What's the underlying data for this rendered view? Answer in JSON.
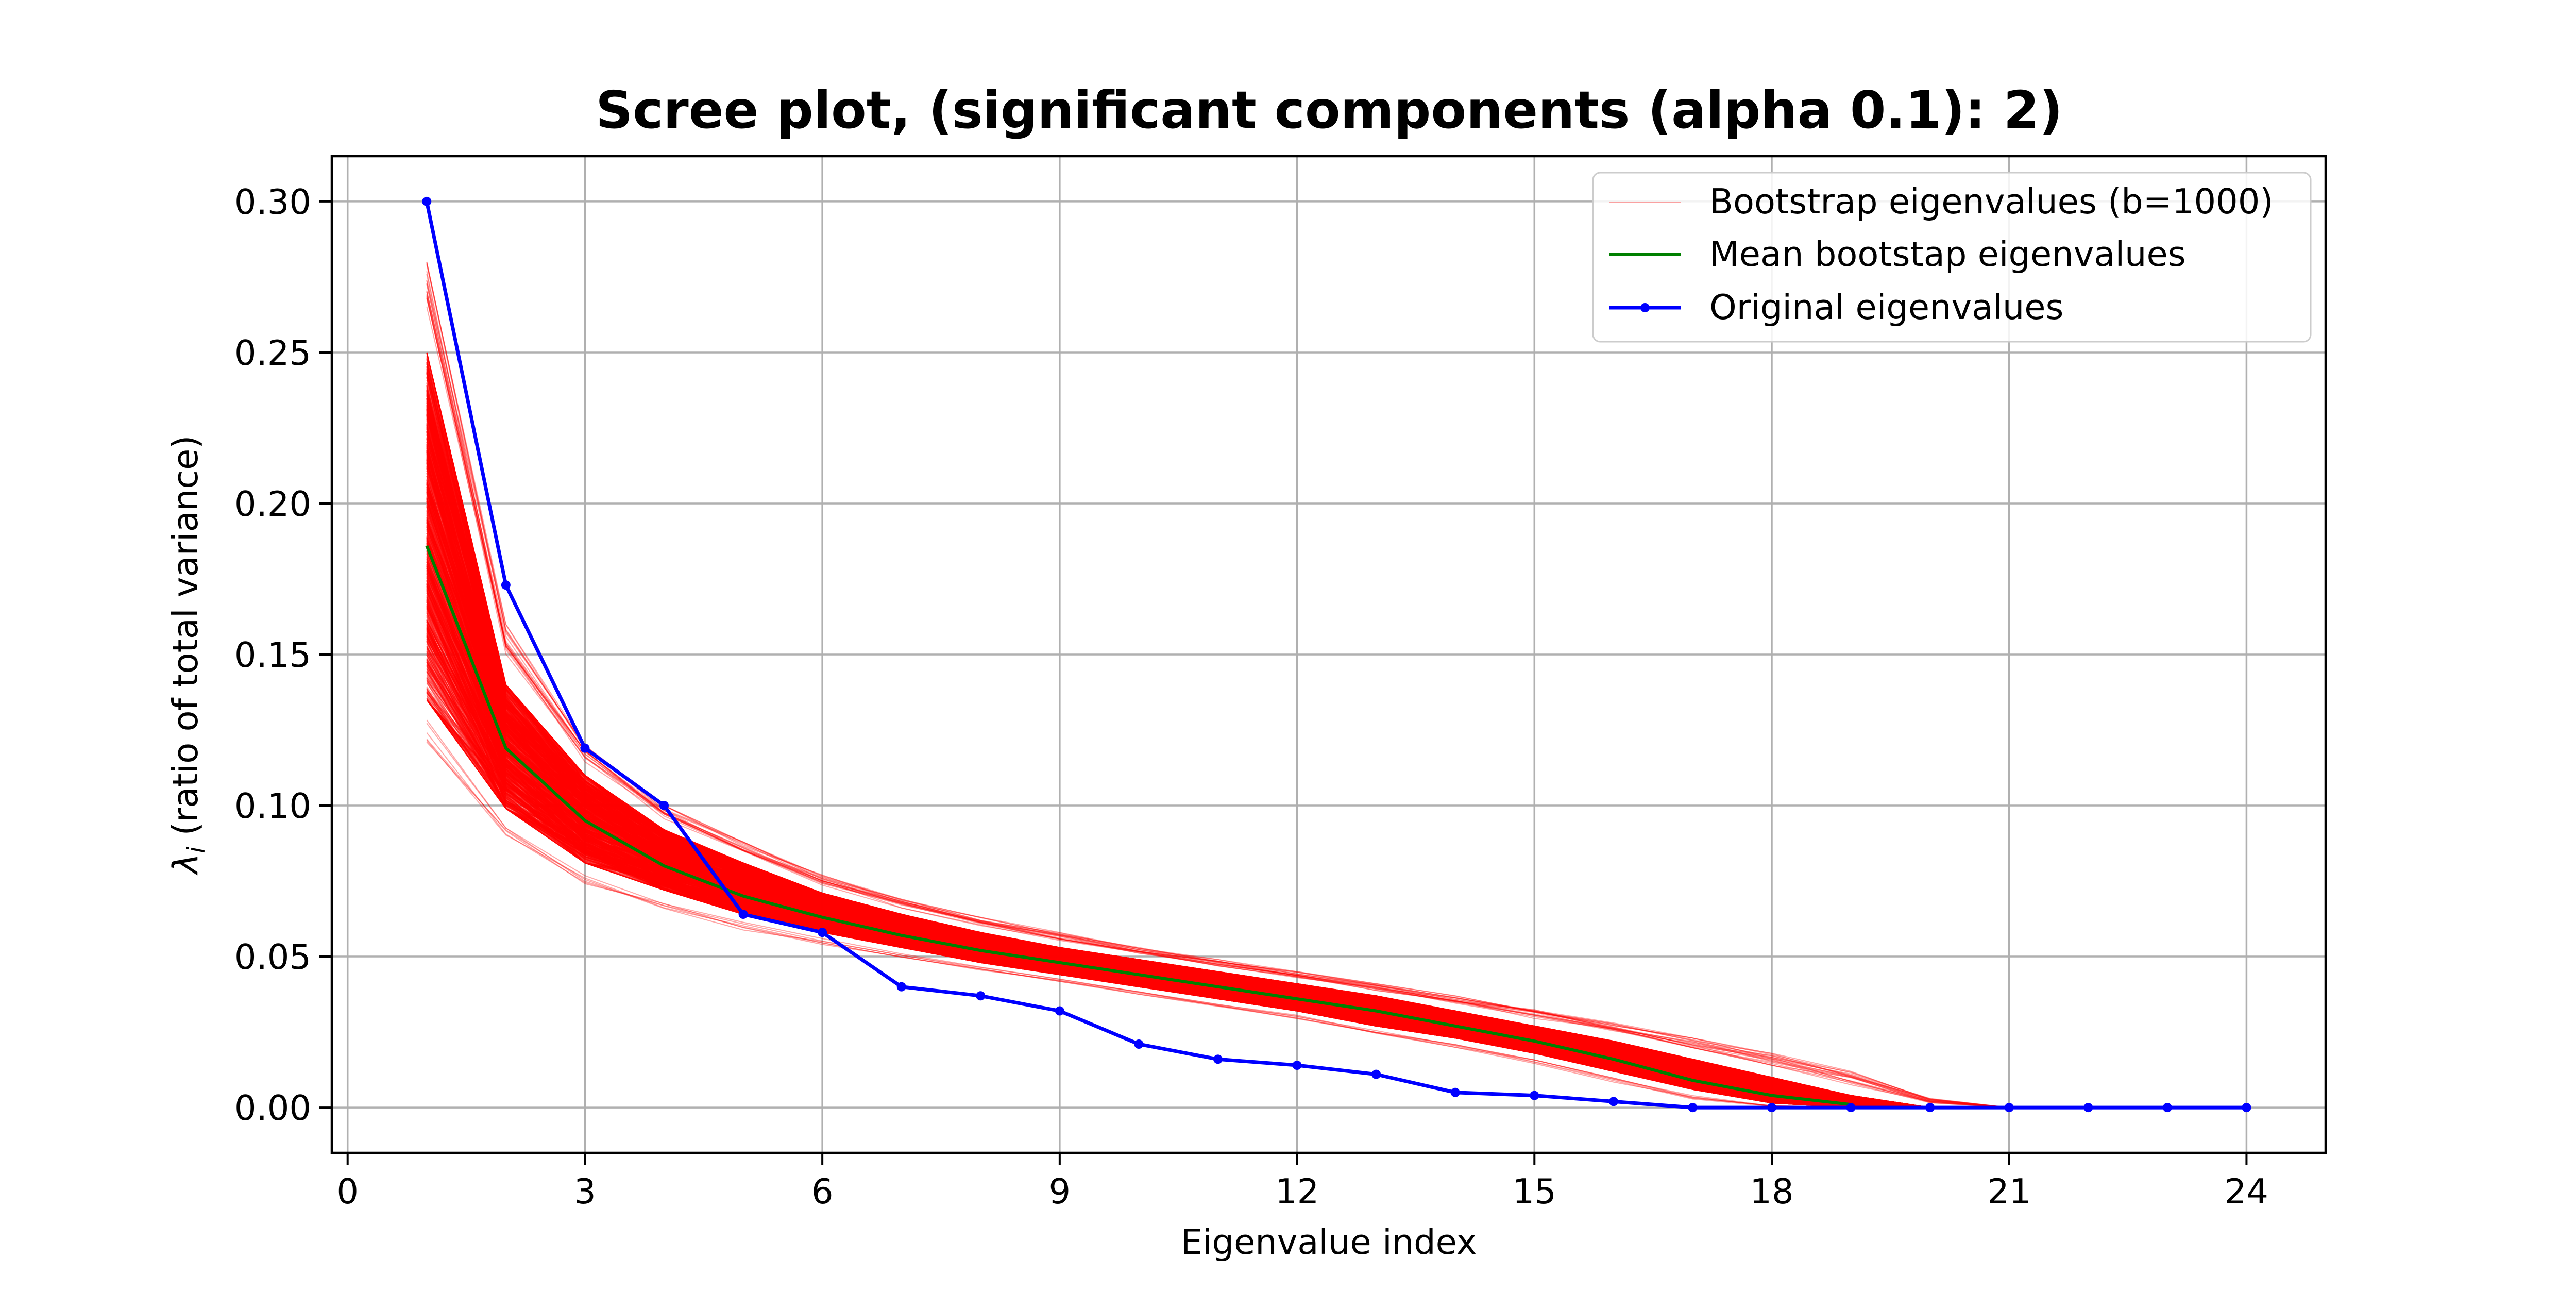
{
  "chart_data": {
    "type": "line",
    "title": "Scree plot, (significant components (alpha 0.1): 2)",
    "xlabel": "Eigenvalue index",
    "ylabel_main": "λ",
    "ylabel_sub": "i",
    "ylabel_rest": " (ratio of total variance)",
    "xlim": [
      -0.2,
      25.0
    ],
    "ylim": [
      -0.015,
      0.315
    ],
    "x_ticks": [
      0,
      3,
      6,
      9,
      12,
      15,
      18,
      21,
      24
    ],
    "x_tick_labels": [
      "0",
      "3",
      "6",
      "9",
      "12",
      "15",
      "18",
      "21",
      "24"
    ],
    "y_ticks": [
      0.0,
      0.05,
      0.1,
      0.15,
      0.2,
      0.25,
      0.3
    ],
    "y_tick_labels": [
      "0.00",
      "0.05",
      "0.10",
      "0.15",
      "0.20",
      "0.25",
      "0.30"
    ],
    "grid": true,
    "legend_position": "top-right",
    "bootstrap": {
      "name": "Bootstrap eigenvalues (b=1000)",
      "color": "#ff0000",
      "count": 1000,
      "x": [
        1,
        2,
        3,
        4,
        5,
        6,
        7,
        8,
        9,
        10,
        11,
        12,
        13,
        14,
        15,
        16,
        17,
        18,
        19,
        20,
        21
      ],
      "q05": [
        0.135,
        0.099,
        0.081,
        0.072,
        0.064,
        0.058,
        0.053,
        0.048,
        0.044,
        0.04,
        0.036,
        0.032,
        0.027,
        0.023,
        0.018,
        0.012,
        0.006,
        0.0015,
        0.0,
        0.0,
        0.0
      ],
      "q95": [
        0.25,
        0.14,
        0.11,
        0.092,
        0.081,
        0.071,
        0.064,
        0.058,
        0.053,
        0.049,
        0.045,
        0.041,
        0.037,
        0.032,
        0.027,
        0.022,
        0.016,
        0.01,
        0.004,
        0.0,
        0.0
      ],
      "max": [
        0.28,
        0.16,
        0.12,
        0.1,
        0.088,
        0.077,
        0.069,
        0.063,
        0.058,
        0.053,
        0.049,
        0.045,
        0.041,
        0.037,
        0.033,
        0.028,
        0.023,
        0.018,
        0.012,
        0.003,
        0.0
      ],
      "min": [
        0.118,
        0.088,
        0.072,
        0.064,
        0.058,
        0.053,
        0.049,
        0.045,
        0.041,
        0.037,
        0.033,
        0.029,
        0.024,
        0.019,
        0.014,
        0.008,
        0.002,
        0.0,
        0.0,
        0.0,
        0.0
      ]
    },
    "series": [
      {
        "name": "Mean bootstap eigenvalues",
        "color": "#008000",
        "x": [
          1,
          2,
          3,
          4,
          5,
          6,
          7,
          8,
          9,
          10,
          11,
          12,
          13,
          14,
          15,
          16,
          17,
          18,
          19
        ],
        "values": [
          0.186,
          0.119,
          0.095,
          0.08,
          0.07,
          0.063,
          0.057,
          0.052,
          0.048,
          0.044,
          0.04,
          0.036,
          0.032,
          0.027,
          0.022,
          0.016,
          0.009,
          0.004,
          0.001
        ]
      },
      {
        "name": "Original eigenvalues",
        "color": "#0000ff",
        "x": [
          1,
          2,
          3,
          4,
          5,
          6,
          7,
          8,
          9,
          10,
          11,
          12,
          13,
          14,
          15,
          16,
          17,
          18,
          19,
          20,
          21,
          22,
          23,
          24
        ],
        "values": [
          0.3,
          0.173,
          0.119,
          0.1,
          0.064,
          0.058,
          0.04,
          0.037,
          0.032,
          0.021,
          0.016,
          0.014,
          0.011,
          0.005,
          0.004,
          0.002,
          0.0,
          0.0,
          0.0,
          0.0,
          0.0,
          0.0,
          0.0,
          0.0
        ]
      }
    ]
  }
}
